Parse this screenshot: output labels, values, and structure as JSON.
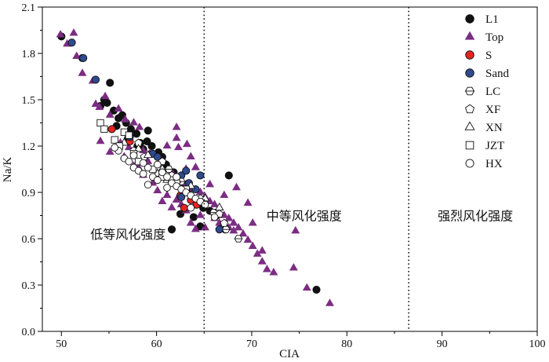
{
  "chart_data": {
    "type": "scatter",
    "title": "",
    "xlabel": "CIA",
    "ylabel": "Na/K",
    "xlim": [
      48,
      100
    ],
    "ylim": [
      0.0,
      2.1
    ],
    "xticks": [
      50,
      60,
      70,
      80,
      90,
      100
    ],
    "yticks": [
      0.0,
      0.3,
      0.6,
      0.9,
      1.2,
      1.5,
      1.8,
      2.1
    ],
    "xtick_labels": [
      "50",
      "60",
      "70",
      "80",
      "90",
      "100"
    ],
    "ytick_labels": [
      "0.0",
      "0.3",
      "0.6",
      "0.9",
      "1.2",
      "1.5",
      "1.8",
      "2.1"
    ],
    "grid": false,
    "legend_position": "top-right",
    "vertical_lines": [
      65,
      86.5
    ],
    "zones": [
      {
        "label": "低等风化强度",
        "x": 57,
        "y": 0.63
      },
      {
        "label": "中等风化强度",
        "x": 75.5,
        "y": 0.75
      },
      {
        "label": "强烈风化强度",
        "x": 93.5,
        "y": 0.75
      }
    ],
    "series": [
      {
        "name": "L1",
        "marker": "circle",
        "color": "#111111",
        "filled": true,
        "points": [
          [
            50,
            1.91
          ],
          [
            52.2,
            1.77
          ],
          [
            55.1,
            1.61
          ],
          [
            54.5,
            1.5
          ],
          [
            54.8,
            1.48
          ],
          [
            54.1,
            1.46
          ],
          [
            55.5,
            1.43
          ],
          [
            56.0,
            1.38
          ],
          [
            56.8,
            1.35
          ],
          [
            55.8,
            1.33
          ],
          [
            57.3,
            1.31
          ],
          [
            57.9,
            1.28
          ],
          [
            58.3,
            1.22
          ],
          [
            59.1,
            1.3
          ],
          [
            59.5,
            1.2
          ],
          [
            58.6,
            1.18
          ],
          [
            60.2,
            1.16
          ],
          [
            60.6,
            1.13
          ],
          [
            61.0,
            1.08
          ],
          [
            61.8,
            1.03
          ],
          [
            62.3,
            0.98
          ],
          [
            62.9,
            0.93
          ],
          [
            63.3,
            0.9
          ],
          [
            63.8,
            0.86
          ],
          [
            64.3,
            0.83
          ],
          [
            64.9,
            0.8
          ],
          [
            65.6,
            0.78
          ],
          [
            66.3,
            0.75
          ],
          [
            63.9,
            0.74
          ],
          [
            62.5,
            0.76
          ],
          [
            61.6,
            0.66
          ],
          [
            64.6,
            0.68
          ],
          [
            67.2,
            0.66
          ],
          [
            67.6,
            1.01
          ],
          [
            76.8,
            0.27
          ],
          [
            59.0,
            1.23
          ],
          [
            58.0,
            1.2
          ],
          [
            56.4,
            1.4
          ],
          [
            57.0,
            1.25
          ]
        ]
      },
      {
        "name": "Top",
        "marker": "triangle",
        "color": "#7b2d82",
        "filled": true,
        "points": [
          [
            49.9,
            1.92
          ],
          [
            51.3,
            1.93
          ],
          [
            51.6,
            1.78
          ],
          [
            50.6,
            1.86
          ],
          [
            52.2,
            1.67
          ],
          [
            53.3,
            1.62
          ],
          [
            54.6,
            1.52
          ],
          [
            53.6,
            1.47
          ],
          [
            54.0,
            1.45
          ],
          [
            55.1,
            1.4
          ],
          [
            56.0,
            1.44
          ],
          [
            56.7,
            1.37
          ],
          [
            57.6,
            1.35
          ],
          [
            58.2,
            1.32
          ],
          [
            56.2,
            1.22
          ],
          [
            57.1,
            1.19
          ],
          [
            58.6,
            1.17
          ],
          [
            59.3,
            1.15
          ],
          [
            61.1,
            1.2
          ],
          [
            62.1,
            1.25
          ],
          [
            62.3,
            1.19
          ],
          [
            63.2,
            1.21
          ],
          [
            63.6,
            1.13
          ],
          [
            64.1,
            1.06
          ],
          [
            61.6,
            1.03
          ],
          [
            60.6,
            1.01
          ],
          [
            62.1,
            0.98
          ],
          [
            63.1,
            0.95
          ],
          [
            63.6,
            0.92
          ],
          [
            64.6,
            0.9
          ],
          [
            65.1,
            0.87
          ],
          [
            65.6,
            0.84
          ],
          [
            66.1,
            0.82
          ],
          [
            66.6,
            0.8
          ],
          [
            67.1,
            0.75
          ],
          [
            67.6,
            0.73
          ],
          [
            68.1,
            0.7
          ],
          [
            68.6,
            0.67
          ],
          [
            69.1,
            0.63
          ],
          [
            69.6,
            0.59
          ],
          [
            70.1,
            0.55
          ],
          [
            70.6,
            0.5
          ],
          [
            71.1,
            0.45
          ],
          [
            71.6,
            0.4
          ],
          [
            72.3,
            0.38
          ],
          [
            74.4,
            0.41
          ],
          [
            74.6,
            0.65
          ],
          [
            75.8,
            0.28
          ],
          [
            78.2,
            0.18
          ],
          [
            66.1,
            0.73
          ],
          [
            67.6,
            0.67
          ],
          [
            68.1,
            0.65
          ],
          [
            66.6,
            0.7
          ],
          [
            65.1,
            0.67
          ],
          [
            64.1,
            0.66
          ],
          [
            63.1,
            0.78
          ],
          [
            62.1,
            0.85
          ],
          [
            61.1,
            0.88
          ],
          [
            60.1,
            0.91
          ],
          [
            59.6,
            0.96
          ],
          [
            58.6,
            1.01
          ],
          [
            57.6,
            1.07
          ],
          [
            56.6,
            1.13
          ],
          [
            55.1,
            1.16
          ],
          [
            54.1,
            1.23
          ],
          [
            60.6,
            0.84
          ],
          [
            61.6,
            0.8
          ],
          [
            62.6,
            0.82
          ],
          [
            63.6,
            0.7
          ],
          [
            64.6,
            0.75
          ],
          [
            67.1,
            0.88
          ],
          [
            68.4,
            0.93
          ],
          [
            69.6,
            0.83
          ],
          [
            70.1,
            0.7
          ],
          [
            71.1,
            0.52
          ],
          [
            65.6,
            0.95
          ],
          [
            64.1,
            1.06
          ],
          [
            63.1,
            1.05
          ],
          [
            62.1,
            1.32
          ],
          [
            59.1,
            1.1
          ],
          [
            58.1,
            1.06
          ]
        ]
      },
      {
        "name": "S",
        "marker": "circle",
        "color": "#e52421",
        "filled": true,
        "points": [
          [
            55.3,
            1.31
          ],
          [
            57.2,
            1.23
          ],
          [
            62.5,
            0.88
          ],
          [
            63.2,
            0.9
          ],
          [
            63.6,
            0.85
          ],
          [
            64.2,
            0.82
          ],
          [
            62.9,
            0.8
          ]
        ]
      },
      {
        "name": "Sand",
        "marker": "circle",
        "color": "#2f4a8e",
        "filled": true,
        "points": [
          [
            51.1,
            1.87
          ],
          [
            52.3,
            1.77
          ],
          [
            53.6,
            1.63
          ],
          [
            57.2,
            1.26
          ],
          [
            59.6,
            1.15
          ],
          [
            60.1,
            1.13
          ],
          [
            62.6,
            1.01
          ],
          [
            63.1,
            1.04
          ],
          [
            64.6,
            1.01
          ],
          [
            63.4,
            0.96
          ],
          [
            64.1,
            0.92
          ],
          [
            62.6,
            0.87
          ],
          [
            67.1,
            0.68
          ],
          [
            66.6,
            0.66
          ]
        ]
      },
      {
        "name": "LC",
        "marker": "hexagon-line",
        "color": "#111111",
        "filled": false,
        "points": [
          [
            68.6,
            0.6
          ],
          [
            66.0,
            0.77
          ],
          [
            67.3,
            0.66
          ],
          [
            61.3,
            1.05
          ],
          [
            62.6,
            0.97
          ]
        ]
      },
      {
        "name": "XF",
        "marker": "pentagon",
        "color": "#111111",
        "filled": false,
        "points": [
          [
            58.1,
            1.22
          ],
          [
            58.7,
            1.13
          ],
          [
            60.6,
            1.1
          ],
          [
            63.1,
            0.92
          ],
          [
            64.6,
            0.86
          ],
          [
            66.6,
            0.76
          ],
          [
            67.1,
            0.7
          ],
          [
            57.6,
            1.17
          ],
          [
            61.6,
            1.01
          ]
        ]
      },
      {
        "name": "XN",
        "marker": "triangle-open",
        "color": "#111111",
        "filled": false,
        "points": [
          [
            56.6,
            1.22
          ],
          [
            58.1,
            1.18
          ],
          [
            59.1,
            1.14
          ],
          [
            60.6,
            1.05
          ],
          [
            62.1,
            0.98
          ],
          [
            63.6,
            0.94
          ],
          [
            65.1,
            0.86
          ],
          [
            66.6,
            0.8
          ],
          [
            61.1,
            0.98
          ],
          [
            60.1,
            1.02
          ]
        ]
      },
      {
        "name": "JZT",
        "marker": "square",
        "color": "#111111",
        "filled": false,
        "points": [
          [
            54.1,
            1.35
          ],
          [
            54.5,
            1.31
          ],
          [
            55.6,
            1.24
          ],
          [
            56.1,
            1.2
          ],
          [
            57.6,
            1.15
          ],
          [
            58.1,
            1.1
          ],
          [
            59.6,
            1.05
          ],
          [
            60.6,
            1.0
          ],
          [
            61.6,
            0.98
          ],
          [
            62.1,
            0.96
          ],
          [
            63.1,
            0.92
          ],
          [
            56.6,
            1.29
          ],
          [
            57.1,
            1.27
          ]
        ]
      },
      {
        "name": "HX",
        "marker": "circle-open",
        "color": "#111111",
        "filled": false,
        "points": [
          [
            56.0,
            1.17
          ],
          [
            56.6,
            1.12
          ],
          [
            57.1,
            1.1
          ],
          [
            57.6,
            1.06
          ],
          [
            58.1,
            1.04
          ],
          [
            58.6,
            1.02
          ],
          [
            59.1,
            1.06
          ],
          [
            59.6,
            1.0
          ],
          [
            60.1,
            0.98
          ],
          [
            60.6,
            1.03
          ],
          [
            61.1,
            1.0
          ],
          [
            61.6,
            0.96
          ],
          [
            62.1,
            0.94
          ],
          [
            62.6,
            0.92
          ],
          [
            63.1,
            0.9
          ],
          [
            63.6,
            0.88
          ],
          [
            64.1,
            0.86
          ],
          [
            64.6,
            0.84
          ],
          [
            65.1,
            0.82
          ],
          [
            55.6,
            1.19
          ],
          [
            57.6,
            1.14
          ],
          [
            58.6,
            1.09
          ],
          [
            59.1,
            0.95
          ],
          [
            60.1,
            1.08
          ],
          [
            61.1,
            0.93
          ],
          [
            62.1,
            1.0
          ],
          [
            63.6,
            0.8
          ],
          [
            66.1,
            0.74
          ]
        ]
      }
    ]
  }
}
